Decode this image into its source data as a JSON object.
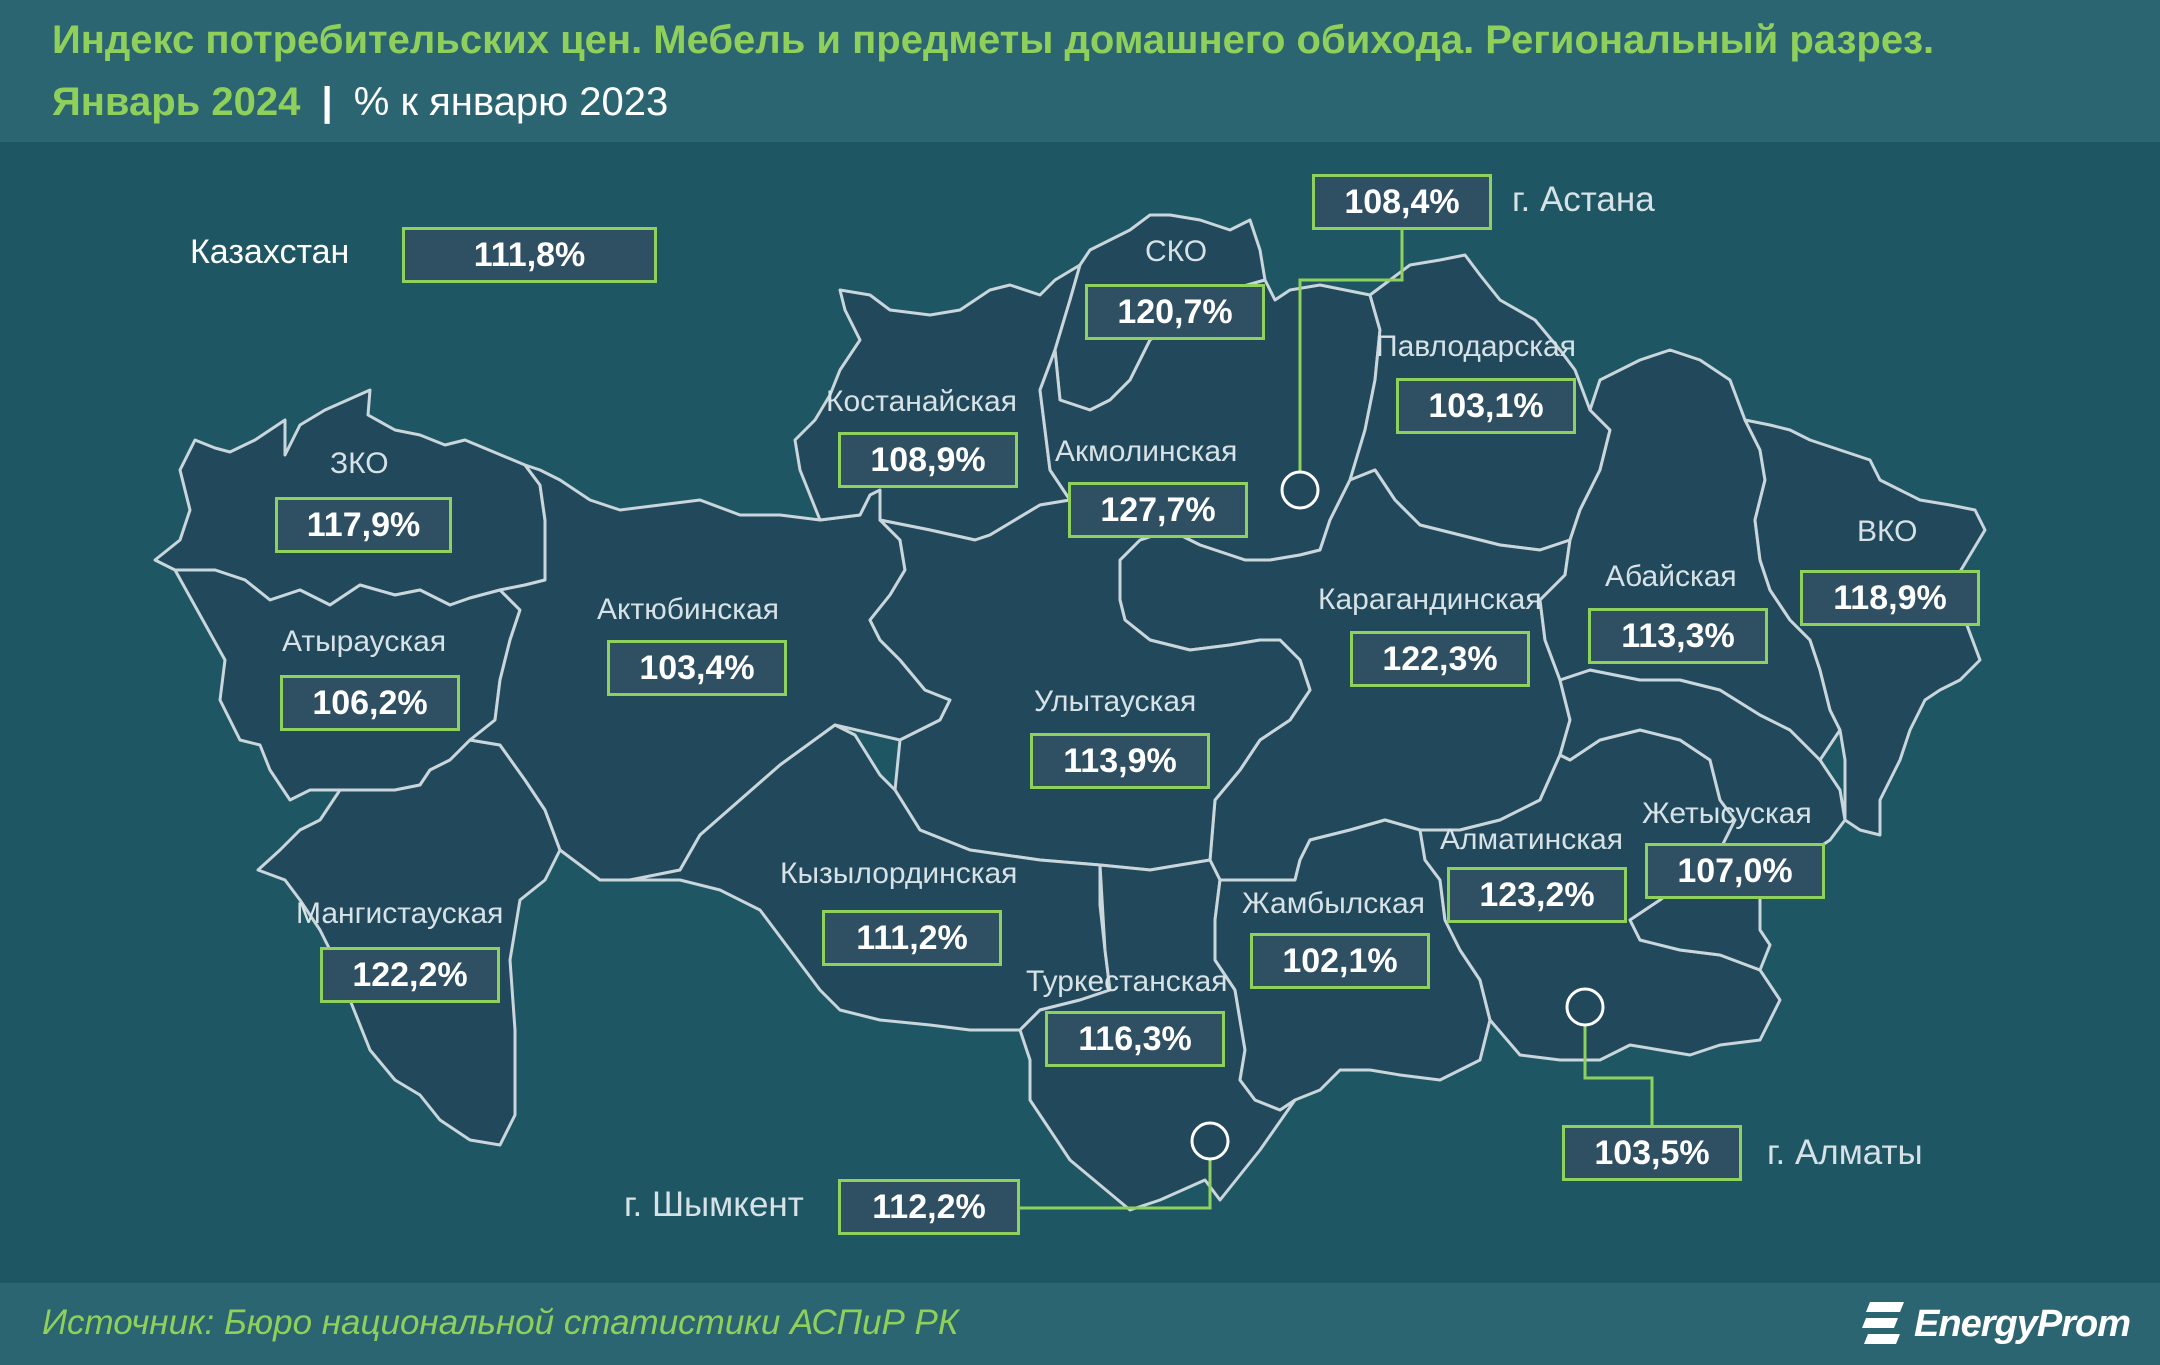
{
  "title": "Индекс потребительских цен. Мебель и предметы домашнего обихода. Региональный разрез.",
  "subtitle": {
    "period": "Январь 2024",
    "separator": "|",
    "unit": "% к январю 2023"
  },
  "source": "Источник: Бюро национальной статистики АСПиР РК",
  "logo_text": "EnergyProm",
  "colors": {
    "background": "#1e5664",
    "region_fill": "#21485b",
    "region_border": "#c9d6dc",
    "accent": "#8ed15c",
    "box_fill": "#2f4f63"
  },
  "country": {
    "name": "Казахстан",
    "value": "111,8%"
  },
  "regions": [
    {
      "id": "zko",
      "name": "ЗКО",
      "value": "117,9%"
    },
    {
      "id": "atyrau",
      "name": "Атырауская",
      "value": "106,2%"
    },
    {
      "id": "mangystau",
      "name": "Мангистауская",
      "value": "122,2%"
    },
    {
      "id": "aktobe",
      "name": "Актюбинская",
      "value": "103,4%"
    },
    {
      "id": "kostanay",
      "name": "Костанайская",
      "value": "108,9%"
    },
    {
      "id": "sko",
      "name": "СКО",
      "value": "120,7%"
    },
    {
      "id": "akmola",
      "name": "Акмолинская",
      "value": "127,7%"
    },
    {
      "id": "pavlodar",
      "name": "Павлодарская",
      "value": "103,1%"
    },
    {
      "id": "karaganda",
      "name": "Карагандинская",
      "value": "122,3%"
    },
    {
      "id": "abai",
      "name": "Абайская",
      "value": "113,3%"
    },
    {
      "id": "vko",
      "name": "ВКО",
      "value": "118,9%"
    },
    {
      "id": "ulytau",
      "name": "Улытауская",
      "value": "113,9%"
    },
    {
      "id": "kyzylorda",
      "name": "Кызылординская",
      "value": "111,2%"
    },
    {
      "id": "turkestan",
      "name": "Туркестанская",
      "value": "116,3%"
    },
    {
      "id": "zhambyl",
      "name": "Жамбылская",
      "value": "102,1%"
    },
    {
      "id": "almaty_reg",
      "name": "Алматинская",
      "value": "123,2%"
    },
    {
      "id": "zhetysu",
      "name": "Жетысуская",
      "value": "107,0%"
    }
  ],
  "cities": [
    {
      "id": "astana",
      "name": "г. Астана",
      "value": "108,4%"
    },
    {
      "id": "almaty",
      "name": "г. Алматы",
      "value": "103,5%"
    },
    {
      "id": "shymkent",
      "name": "г. Шымкент",
      "value": "112,2%"
    }
  ]
}
